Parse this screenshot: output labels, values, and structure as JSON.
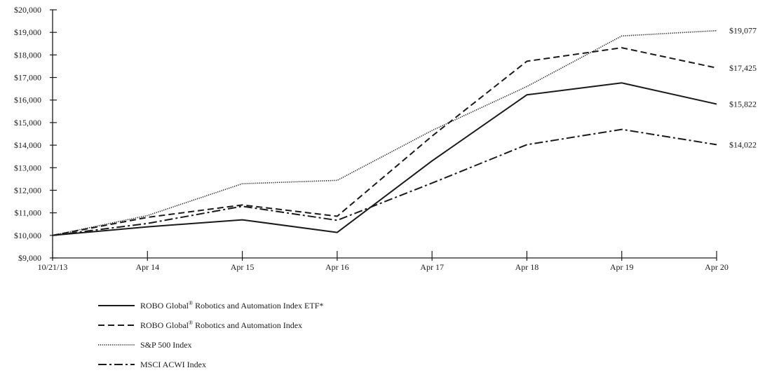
{
  "chart_data": {
    "type": "line",
    "title": "",
    "xlabel": "",
    "ylabel": "",
    "x": [
      "10/21/13",
      "Apr 14",
      "Apr 15",
      "Apr 16",
      "Apr 17",
      "Apr 18",
      "Apr 19",
      "Apr 20"
    ],
    "y_ticks": [
      "$9,000",
      "$10,000",
      "$11,000",
      "$12,000",
      "$13,000",
      "$14,000",
      "$15,000",
      "$16,000",
      "$17,000",
      "$18,000",
      "$19,000",
      "$20,000"
    ],
    "ylim": [
      9000,
      20000
    ],
    "grid": false,
    "legend_position": "bottom-left",
    "series": [
      {
        "name": "ROBO Global® Robotics and Automation Index ETF*",
        "legend_main": "ROBO Global",
        "legend_sup": "®",
        "legend_rest": " Robotics and Automation Index ETF*",
        "style": "solid",
        "values": [
          10000,
          10380,
          10690,
          10130,
          13300,
          16230,
          16760,
          15822
        ],
        "end_label": "$15,822"
      },
      {
        "name": "ROBO Global® Robotics and Automation Index",
        "legend_main": "ROBO Global",
        "legend_sup": "®",
        "legend_rest": " Robotics and Automation Index",
        "style": "dashed",
        "values": [
          10000,
          10800,
          11350,
          10850,
          14400,
          17720,
          18320,
          17425
        ],
        "end_label": "$17,425"
      },
      {
        "name": "S&P 500 Index",
        "legend_main": "S&P 500 Index",
        "legend_sup": "",
        "legend_rest": "",
        "style": "dotted",
        "values": [
          10000,
          10880,
          12290,
          12440,
          14650,
          16600,
          18840,
          19077
        ],
        "end_label": "$19,077"
      },
      {
        "name": "MSCI ACWI Index",
        "legend_main": "MSCI  ACWI Index",
        "legend_sup": "",
        "legend_rest": "",
        "style": "dashdot",
        "values": [
          10000,
          10530,
          11290,
          10670,
          12320,
          14020,
          14700,
          14022
        ],
        "end_label": "$14,022"
      }
    ]
  }
}
